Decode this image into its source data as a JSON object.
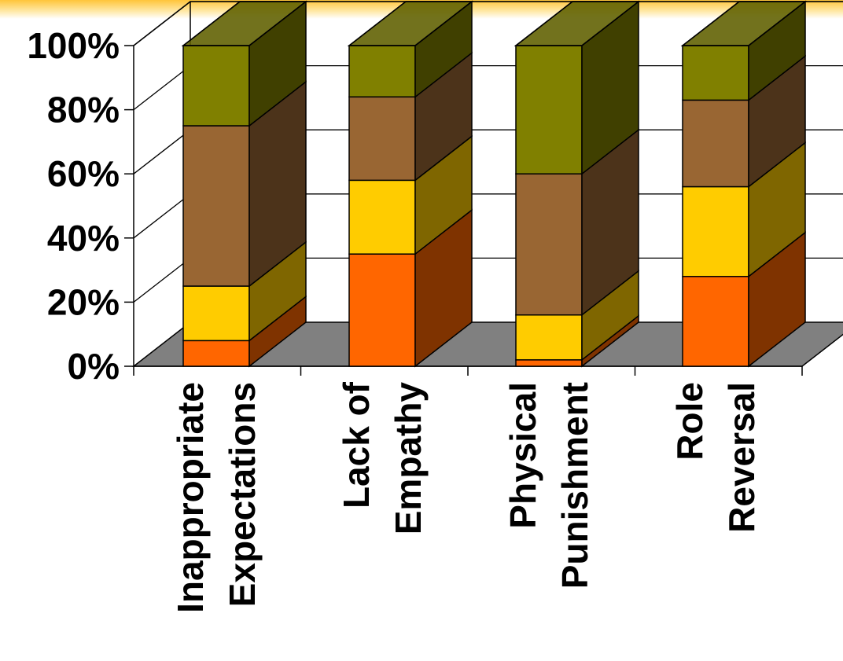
{
  "chart_data": {
    "type": "bar",
    "stacked": "percent",
    "view": "3d",
    "categories": [
      "Inappropriate Expectations",
      "Lack of Empathy",
      "Physical Punishment",
      "Role Reversal"
    ],
    "category_label_lines": [
      [
        "Inappropriate",
        "Expectations"
      ],
      [
        "Lack of",
        "Empathy"
      ],
      [
        "Physical",
        "Punishment"
      ],
      [
        "Role",
        "Reversal"
      ]
    ],
    "series": [
      {
        "values": [
          8,
          35,
          2,
          28
        ],
        "color": "#FF6600",
        "side_color": "#7F3300"
      },
      {
        "values": [
          17,
          23,
          14,
          28
        ],
        "color": "#FFCC00",
        "side_color": "#7F6600"
      },
      {
        "values": [
          50,
          26,
          44,
          27
        ],
        "color": "#996633",
        "side_color": "#4C331A"
      },
      {
        "values": [
          25,
          16,
          40,
          17
        ],
        "color": "#808000",
        "side_color": "#404000"
      }
    ],
    "ylim": [
      0,
      100
    ],
    "y_ticks": [
      "0%",
      "20%",
      "40%",
      "60%",
      "80%",
      "100%"
    ],
    "grid": true,
    "legend": "none",
    "floor_color": "#808080"
  }
}
